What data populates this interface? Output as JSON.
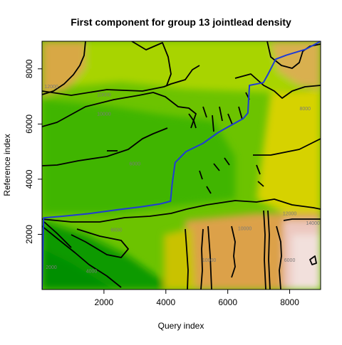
{
  "chart_data": {
    "type": "heatmap",
    "title": "First component for group 13 jointlead density",
    "xlabel": "Query index",
    "ylabel": "Reference index",
    "xlim": [
      0,
      9000
    ],
    "ylim": [
      0,
      9000
    ],
    "x_ticks": [
      2000,
      4000,
      6000,
      8000
    ],
    "y_ticks": [
      2000,
      4000,
      6000,
      8000
    ],
    "x_tick_labels": [
      "2000",
      "4000",
      "6000",
      "8000"
    ],
    "y_tick_labels": [
      "2000",
      "4000",
      "6000",
      "8000"
    ],
    "colormap": "terrain",
    "color_low": "#00a600",
    "color_high": "#f2f2f2",
    "contour_color": "#000000",
    "path_color": "#1f3bd6",
    "contour_labels": [
      {
        "text": "12000",
        "x": 300,
        "y": 7300
      },
      {
        "text": "10000",
        "x": 2000,
        "y": 7000
      },
      {
        "text": "10000",
        "x": 2000,
        "y": 6300
      },
      {
        "text": "8000",
        "x": 8500,
        "y": 6500
      },
      {
        "text": "6000",
        "x": 3000,
        "y": 4500
      },
      {
        "text": "6000",
        "x": 2400,
        "y": 2100
      },
      {
        "text": "10000",
        "x": 6550,
        "y": 2150
      },
      {
        "text": "12000",
        "x": 8000,
        "y": 2700
      },
      {
        "text": "14000",
        "x": 8750,
        "y": 2350
      },
      {
        "text": "10000",
        "x": 5400,
        "y": 1000
      },
      {
        "text": "6000",
        "x": 8000,
        "y": 1000
      },
      {
        "text": "4000",
        "x": 1600,
        "y": 600
      },
      {
        "text": "2000",
        "x": 300,
        "y": 750
      }
    ],
    "warp_path": {
      "x": [
        0,
        50,
        600,
        1500,
        2500,
        3200,
        3800,
        4150,
        4200,
        4300,
        4650,
        5200,
        5700,
        6100,
        6500,
        6650,
        6700,
        7150,
        7300,
        7550,
        7900,
        8500,
        9000
      ],
      "y": [
        0,
        2600,
        2650,
        2750,
        2900,
        3000,
        3100,
        3200,
        3800,
        4600,
        5000,
        5300,
        5700,
        5950,
        6200,
        6400,
        7400,
        7500,
        7800,
        8350,
        8500,
        8700,
        9000
      ]
    }
  }
}
